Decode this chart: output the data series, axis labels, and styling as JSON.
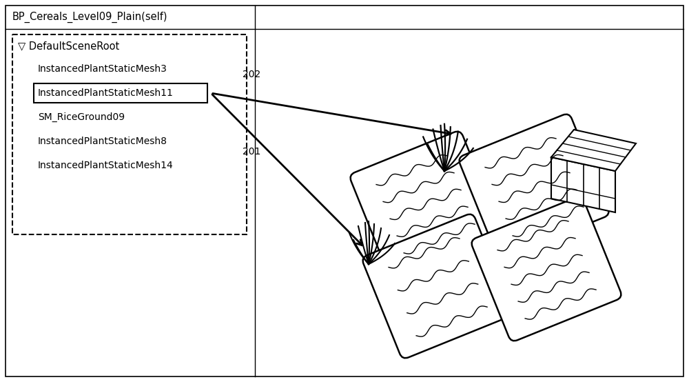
{
  "title_text": "BP_Cereals_Level09_Plain(self)",
  "scene_root_label": "▽ DefaultSceneRoot",
  "items": [
    "InstancedPlantStaticMesh3",
    "InstancedPlantStaticMesh11",
    "SM_RiceGround09",
    "InstancedPlantStaticMesh8",
    "InstancedPlantStaticMesh14"
  ],
  "highlighted_item": "InstancedPlantStaticMesh11",
  "label_202": "202",
  "label_201": "201",
  "bg_color": "#ffffff",
  "border_color": "#000000",
  "text_color": "#000000"
}
